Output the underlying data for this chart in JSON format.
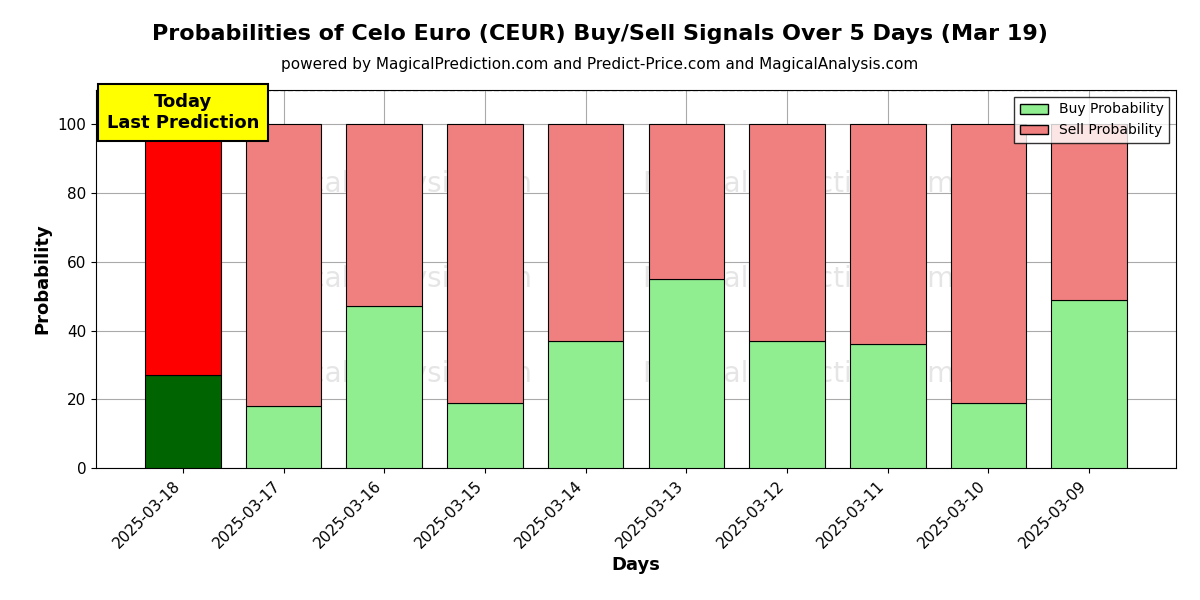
{
  "title": "Probabilities of Celo Euro (CEUR) Buy/Sell Signals Over 5 Days (Mar 19)",
  "subtitle": "powered by MagicalPrediction.com and Predict-Price.com and MagicalAnalysis.com",
  "xlabel": "Days",
  "ylabel": "Probability",
  "watermark1": "MagicalAnalysis.com",
  "watermark2": "MagicalPrediction.com",
  "categories": [
    "2025-03-18",
    "2025-03-17",
    "2025-03-16",
    "2025-03-15",
    "2025-03-14",
    "2025-03-13",
    "2025-03-12",
    "2025-03-11",
    "2025-03-10",
    "2025-03-09"
  ],
  "buy_values": [
    27,
    18,
    47,
    19,
    37,
    55,
    37,
    36,
    19,
    49
  ],
  "sell_values": [
    73,
    82,
    53,
    81,
    63,
    45,
    63,
    64,
    81,
    51
  ],
  "today_bar_index": 0,
  "buy_color_today": "#006400",
  "sell_color_today": "#FF0000",
  "buy_color_rest": "#90EE90",
  "sell_color_rest": "#F08080",
  "today_label": "Today\nLast Prediction",
  "today_label_bg": "#FFFF00",
  "legend_buy_label": "Buy Probability",
  "legend_sell_label": "Sell Probability",
  "ylim": [
    0,
    110
  ],
  "yticks": [
    0,
    20,
    40,
    60,
    80,
    100
  ],
  "dashed_line_y": 110,
  "bg_color": "#FFFFFF",
  "grid_color": "#AAAAAA",
  "bar_edge_color": "#000000",
  "title_fontsize": 16,
  "subtitle_fontsize": 11,
  "axis_label_fontsize": 13,
  "tick_fontsize": 11
}
